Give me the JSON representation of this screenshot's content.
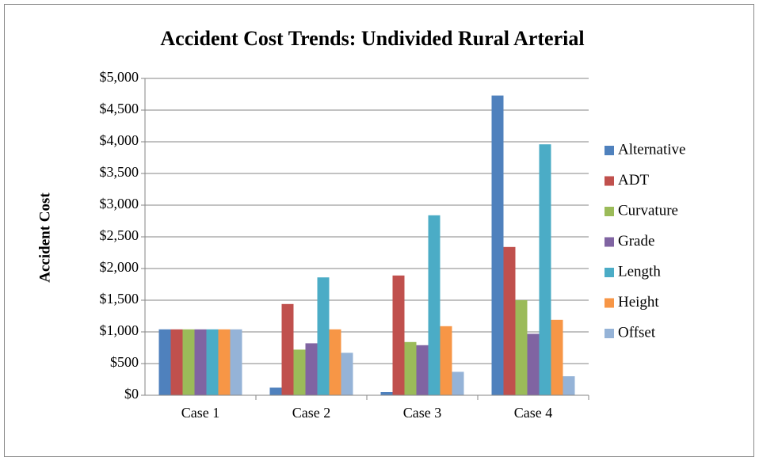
{
  "chart_data": {
    "type": "bar",
    "title": "Accident Cost Trends: Undivided Rural Arterial",
    "ylabel": "Accident Cost",
    "categories": [
      "Case 1",
      "Case 2",
      "Case 3",
      "Case 4"
    ],
    "series": [
      {
        "name": "Alternative",
        "color": "#4f81bd",
        "values": [
          1040,
          120,
          50,
          4730
        ]
      },
      {
        "name": "ADT",
        "color": "#c0504d",
        "values": [
          1040,
          1440,
          1890,
          2340
        ]
      },
      {
        "name": "Curvature",
        "color": "#9bbb59",
        "values": [
          1040,
          720,
          840,
          1500
        ]
      },
      {
        "name": "Grade",
        "color": "#8064a2",
        "values": [
          1040,
          820,
          790,
          970
        ]
      },
      {
        "name": "Length",
        "color": "#4bacc6",
        "values": [
          1040,
          1860,
          2840,
          3960
        ]
      },
      {
        "name": "Height",
        "color": "#f79646",
        "values": [
          1040,
          1040,
          1090,
          1190
        ]
      },
      {
        "name": "Offset",
        "color": "#95b3d7",
        "values": [
          1040,
          670,
          370,
          300
        ]
      }
    ],
    "ylim": [
      0,
      5000
    ],
    "yticks": [
      {
        "value": 0,
        "label": "$0"
      },
      {
        "value": 500,
        "label": "$500"
      },
      {
        "value": 1000,
        "label": "$1,000"
      },
      {
        "value": 1500,
        "label": "$1,500"
      },
      {
        "value": 2000,
        "label": "$2,000"
      },
      {
        "value": 2500,
        "label": "$2,500"
      },
      {
        "value": 3000,
        "label": "$3,000"
      },
      {
        "value": 3500,
        "label": "$3,500"
      },
      {
        "value": 4000,
        "label": "$4,000"
      },
      {
        "value": 4500,
        "label": "$4,500"
      },
      {
        "value": 5000,
        "label": "$5,000"
      }
    ],
    "grid": true,
    "legend": "right"
  }
}
